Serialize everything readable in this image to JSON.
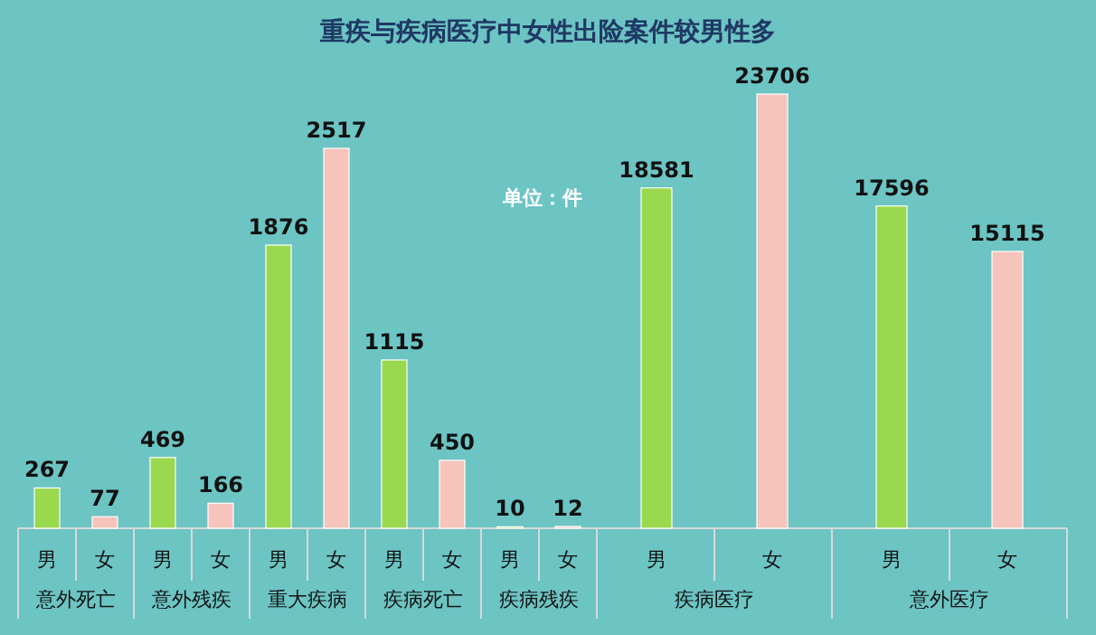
{
  "chart_data": [
    {
      "type": "bar",
      "title": "重疾与疾病医疗中女性出险案件较男性多",
      "annotations": [
        "单位：件"
      ],
      "categories": [
        "意外死亡",
        "意外残疾",
        "重大疾病",
        "疾病死亡",
        "疾病残疾"
      ],
      "data_labels": true,
      "series": [
        {
          "name": "男",
          "color": "#9ad84e",
          "values": [
            267,
            469,
            1876,
            1115,
            10
          ]
        },
        {
          "name": "女",
          "color": "#f6c4bb",
          "values": [
            77,
            166,
            2517,
            450,
            12
          ]
        }
      ]
    },
    {
      "type": "bar",
      "categories": [
        "疾病医疗",
        "意外医疗"
      ],
      "data_labels": true,
      "series": [
        {
          "name": "男",
          "color": "#9ad84e",
          "values": [
            18581,
            17596
          ]
        },
        {
          "name": "女",
          "color": "#f6c4bb",
          "values": [
            23706,
            15115
          ]
        }
      ]
    }
  ]
}
